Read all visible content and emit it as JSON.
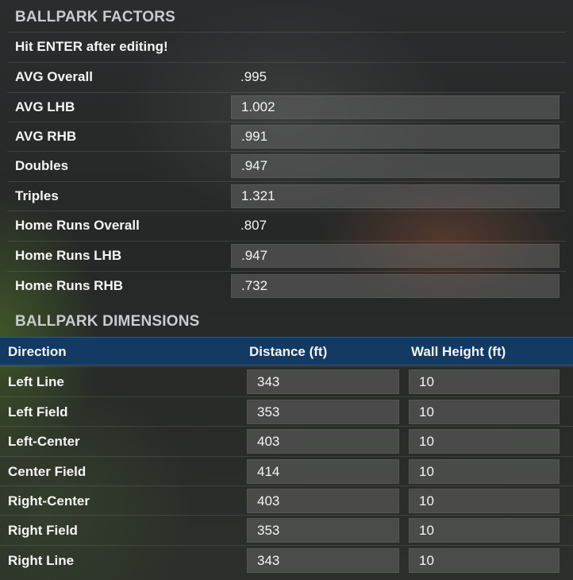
{
  "factors": {
    "title": "BALLPARK FACTORS",
    "hint": "Hit ENTER after editing!",
    "rows": [
      {
        "label": "AVG Overall",
        "value": ".995",
        "editable": false
      },
      {
        "label": "AVG LHB",
        "value": "1.002",
        "editable": true
      },
      {
        "label": "AVG RHB",
        "value": ".991",
        "editable": true
      },
      {
        "label": "Doubles",
        "value": ".947",
        "editable": true
      },
      {
        "label": "Triples",
        "value": "1.321",
        "editable": true
      },
      {
        "label": "Home Runs Overall",
        "value": ".807",
        "editable": false
      },
      {
        "label": "Home Runs LHB",
        "value": ".947",
        "editable": true
      },
      {
        "label": "Home Runs RHB",
        "value": ".732",
        "editable": true
      }
    ]
  },
  "dimensions": {
    "title": "BALLPARK DIMENSIONS",
    "headers": {
      "direction": "Direction",
      "distance": "Distance (ft)",
      "wall": "Wall Height (ft)"
    },
    "rows": [
      {
        "direction": "Left Line",
        "distance": "343",
        "wall": "10"
      },
      {
        "direction": "Left Field",
        "distance": "353",
        "wall": "10"
      },
      {
        "direction": "Left-Center",
        "distance": "403",
        "wall": "10"
      },
      {
        "direction": "Center Field",
        "distance": "414",
        "wall": "10"
      },
      {
        "direction": "Right-Center",
        "distance": "403",
        "wall": "10"
      },
      {
        "direction": "Right Field",
        "distance": "353",
        "wall": "10"
      },
      {
        "direction": "Right Line",
        "distance": "343",
        "wall": "10"
      }
    ]
  }
}
